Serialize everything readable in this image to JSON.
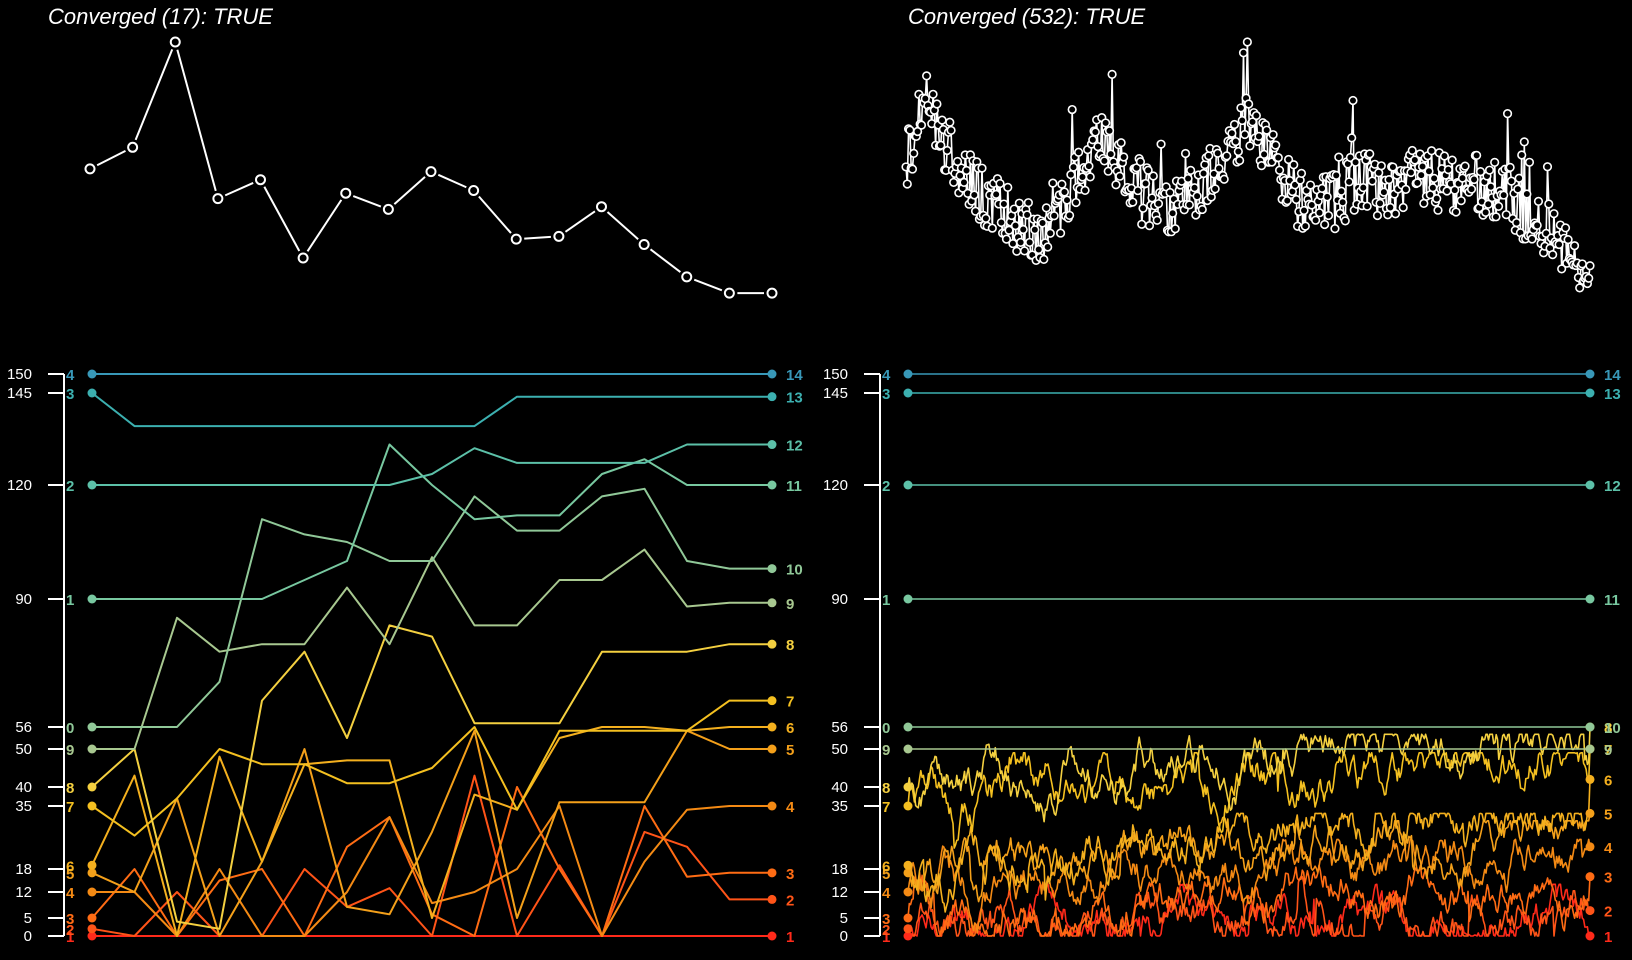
{
  "chart_data": [
    {
      "type": "line",
      "panel": "top-left",
      "title": "Converged (17): TRUE",
      "x": [
        1,
        2,
        3,
        4,
        5,
        6,
        7,
        8,
        9,
        10,
        11,
        12,
        13,
        14,
        15,
        16,
        17
      ],
      "values": [
        0.53,
        0.61,
        1.0,
        0.42,
        0.49,
        0.2,
        0.44,
        0.38,
        0.52,
        0.45,
        0.27,
        0.28,
        0.39,
        0.25,
        0.13,
        0.07,
        0.07
      ],
      "axes_visible": false
    },
    {
      "type": "line",
      "panel": "top-right",
      "title": "Converged (532): TRUE",
      "n_points": 532,
      "description_values": "dense convergence trace between approx 0.1 and 1.0",
      "axes_visible": false
    },
    {
      "type": "line",
      "panel": "bottom-left",
      "y_ticks": [
        0,
        5,
        12,
        18,
        35,
        40,
        50,
        56,
        90,
        120,
        145,
        150
      ],
      "ylim": [
        0,
        150
      ],
      "n_steps": 17,
      "start_labels": [
        "1",
        "2",
        "3",
        "4",
        "5",
        "6",
        "7",
        "8",
        "9",
        "0",
        "1",
        "2",
        "3",
        "4"
      ],
      "end_labels": [
        "1",
        "2",
        "3",
        "4",
        "5",
        "6",
        "7",
        "8",
        "9",
        "10",
        "11",
        "12",
        "13",
        "14"
      ],
      "series": [
        {
          "name": "1",
          "color": "#ff2a1a",
          "start": 0,
          "end": 0,
          "values": [
            0,
            0,
            0,
            0,
            0,
            0,
            0,
            0,
            0,
            0,
            0,
            0,
            0,
            0,
            0,
            0,
            0
          ]
        },
        {
          "name": "2",
          "color": "#ff5418",
          "start": 2,
          "end": 10,
          "values": [
            2,
            0,
            12,
            0,
            0,
            18,
            8,
            13,
            0,
            43,
            0,
            19,
            0,
            28,
            24,
            10,
            10
          ]
        },
        {
          "name": "3",
          "color": "#ff6c14",
          "start": 5,
          "end": 17,
          "values": [
            5,
            18,
            0,
            15,
            18,
            0,
            24,
            32,
            6,
            0,
            40,
            18,
            0,
            35,
            16,
            17,
            17
          ]
        },
        {
          "name": "4",
          "color": "#f48a14",
          "start": 12,
          "end": 35,
          "values": [
            12,
            12,
            0,
            18,
            0,
            0,
            12,
            32,
            9,
            12,
            18,
            35,
            0,
            20,
            34,
            35,
            35
          ]
        },
        {
          "name": "5",
          "color": "#f4a01a",
          "start": 17,
          "end": 50,
          "values": [
            17,
            12,
            37,
            0,
            20,
            50,
            8,
            6,
            28,
            55,
            5,
            36,
            36,
            36,
            55,
            50,
            50
          ]
        },
        {
          "name": "6",
          "color": "#f4b01e",
          "start": 19,
          "end": 56,
          "values": [
            19,
            43,
            0,
            48,
            20,
            46,
            47,
            47,
            5,
            38,
            34,
            53,
            56,
            56,
            55,
            56,
            56
          ]
        },
        {
          "name": "7",
          "color": "#f4c020",
          "start": 35,
          "end": 63,
          "values": [
            35,
            27,
            37,
            50,
            46,
            46,
            41,
            41,
            45,
            56,
            34,
            55,
            55,
            55,
            55,
            63,
            63
          ]
        },
        {
          "name": "8",
          "color": "#f4d040",
          "start": 40,
          "end": 78,
          "values": [
            40,
            50,
            4,
            2,
            63,
            76,
            53,
            83,
            80,
            57,
            57,
            57,
            76,
            76,
            76,
            78,
            78
          ]
        },
        {
          "name": "9",
          "color": "#a8c890",
          "start": 50,
          "end": 89,
          "values": [
            50,
            50,
            85,
            76,
            78,
            78,
            93,
            78,
            101,
            83,
            83,
            95,
            95,
            103,
            88,
            89,
            89
          ]
        },
        {
          "name": "10",
          "color": "#90c898",
          "start": 56,
          "end": 98,
          "values": [
            56,
            56,
            56,
            68,
            111,
            107,
            105,
            100,
            100,
            117,
            108,
            108,
            117,
            119,
            100,
            98,
            98
          ]
        },
        {
          "name": "11",
          "color": "#78c8a0",
          "start": 90,
          "end": 120,
          "values": [
            90,
            90,
            90,
            90,
            90,
            95,
            100,
            131,
            120,
            111,
            112,
            112,
            123,
            127,
            120,
            120,
            120
          ]
        },
        {
          "name": "12",
          "color": "#5cc0a8",
          "start": 120,
          "end": 131,
          "values": [
            120,
            120,
            120,
            120,
            120,
            120,
            120,
            120,
            123,
            130,
            126,
            126,
            126,
            126,
            131,
            131,
            131
          ]
        },
        {
          "name": "13",
          "color": "#3cb0b0",
          "start": 145,
          "end": 144,
          "values": [
            145,
            136,
            136,
            136,
            136,
            136,
            136,
            136,
            136,
            136,
            144,
            144,
            144,
            144,
            144,
            144,
            144
          ]
        },
        {
          "name": "14",
          "color": "#3898b8",
          "start": 150,
          "end": 150,
          "values": [
            150,
            150,
            150,
            150,
            150,
            150,
            150,
            150,
            150,
            150,
            150,
            150,
            150,
            150,
            150,
            150,
            150
          ]
        }
      ]
    },
    {
      "type": "line",
      "panel": "bottom-right",
      "y_ticks": [
        0,
        5,
        12,
        18,
        35,
        40,
        50,
        56,
        90,
        120,
        145,
        150
      ],
      "ylim": [
        0,
        150
      ],
      "n_steps": 532,
      "start_labels": [
        "1",
        "2",
        "3",
        "4",
        "5",
        "6",
        "7",
        "8",
        "9",
        "0",
        "1",
        "2",
        "3",
        "4"
      ],
      "end_labels": [
        "1",
        "2",
        "3",
        "4",
        "5",
        "6",
        "7",
        "8",
        "9",
        "10",
        "11",
        "12",
        "13",
        "14"
      ],
      "series": [
        {
          "name": "1",
          "color": "#ff2a1a",
          "start": 0,
          "end": 0
        },
        {
          "name": "2",
          "color": "#ff5418",
          "start": 2,
          "end": 7
        },
        {
          "name": "3",
          "color": "#ff6c14",
          "start": 5,
          "end": 16
        },
        {
          "name": "4",
          "color": "#f48a14",
          "start": 12,
          "end": 24
        },
        {
          "name": "5",
          "color": "#f4a01a",
          "start": 17,
          "end": 33
        },
        {
          "name": "6",
          "color": "#f4b01e",
          "start": 19,
          "end": 42
        },
        {
          "name": "7",
          "color": "#f4c020",
          "start": 35,
          "end": 50
        },
        {
          "name": "8",
          "color": "#f4d040",
          "start": 40,
          "end": 56
        },
        {
          "name": "9",
          "color": "#a8c890",
          "start": 50,
          "end": 50
        },
        {
          "name": "10",
          "color": "#90c898",
          "start": 56,
          "end": 56
        },
        {
          "name": "11",
          "color": "#78c8a0",
          "start": 90,
          "end": 90
        },
        {
          "name": "12",
          "color": "#5cc0a8",
          "start": 120,
          "end": 120
        },
        {
          "name": "13",
          "color": "#3cb0b0",
          "start": 145,
          "end": 145
        },
        {
          "name": "14",
          "color": "#3898b8",
          "start": 150,
          "end": 150
        }
      ]
    }
  ]
}
